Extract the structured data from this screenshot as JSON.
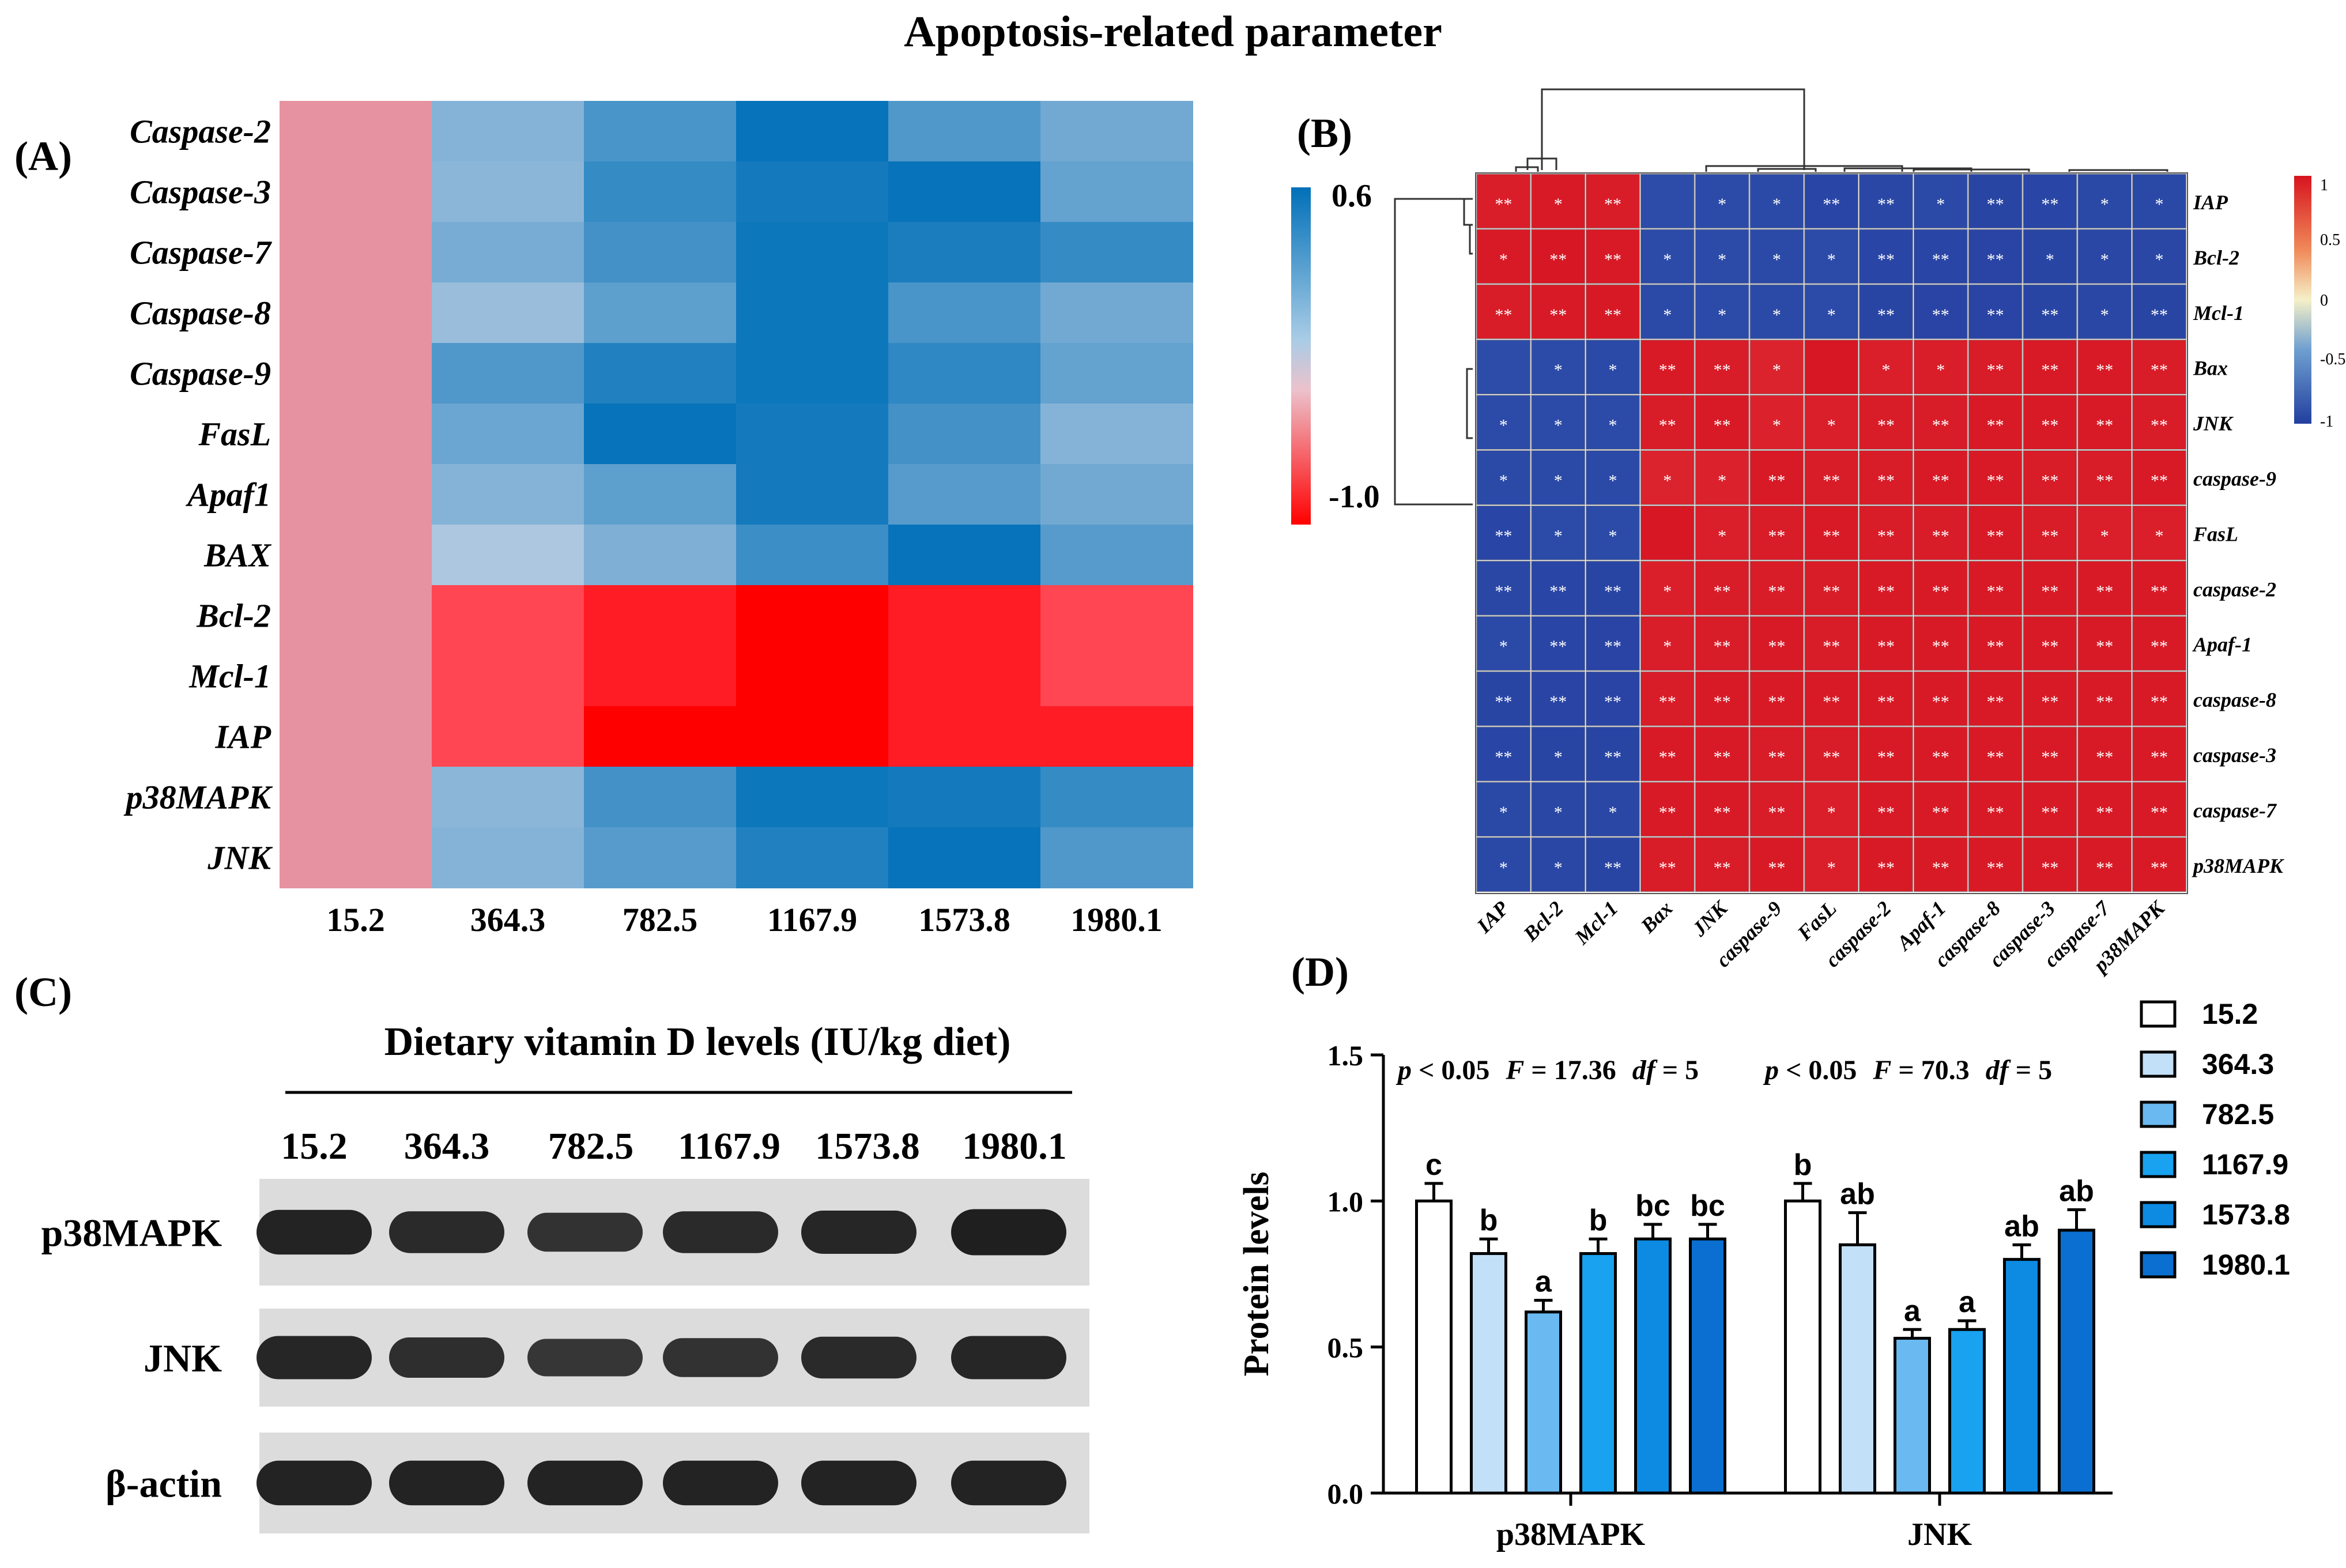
{
  "figure_title": "Apoptosis-related parameter",
  "panel_labels": [
    "(A)",
    "(B)",
    "(C)",
    "(D)"
  ],
  "chart_data": [
    {
      "id": "A",
      "type": "heatmap",
      "title": "",
      "rows": [
        "Caspase-2",
        "Caspase-3",
        "Caspase-7",
        "Caspase-8",
        "Caspase-9",
        "FasL",
        "Apaf1",
        "BAX",
        "Bcl-2",
        "Mcl-1",
        "IAP",
        "p38MAPK",
        "JNK"
      ],
      "columns": [
        "15.2",
        "364.3",
        "782.5",
        "1167.9",
        "1573.8",
        "1980.1"
      ],
      "values": [
        [
          -0.8,
          0.2,
          0.38,
          0.58,
          0.36,
          0.26
        ],
        [
          -0.8,
          0.18,
          0.44,
          0.54,
          0.58,
          0.3
        ],
        [
          -0.8,
          0.24,
          0.4,
          0.56,
          0.52,
          0.44
        ],
        [
          -0.8,
          0.14,
          0.32,
          0.56,
          0.38,
          0.26
        ],
        [
          -0.8,
          0.36,
          0.5,
          0.56,
          0.46,
          0.3
        ],
        [
          -0.8,
          0.28,
          0.58,
          0.54,
          0.4,
          0.2
        ],
        [
          -0.8,
          0.2,
          0.32,
          0.54,
          0.34,
          0.26
        ],
        [
          -0.8,
          0.08,
          0.22,
          0.42,
          0.58,
          0.34
        ],
        [
          -0.8,
          -0.84,
          -0.93,
          -1.0,
          -0.92,
          -0.86
        ],
        [
          -0.8,
          -0.86,
          -0.92,
          -1.0,
          -0.92,
          -0.86
        ],
        [
          -0.8,
          -0.86,
          -1.0,
          -1.0,
          -0.94,
          -0.9
        ],
        [
          -0.8,
          0.18,
          0.4,
          0.56,
          0.54,
          0.44
        ],
        [
          -0.8,
          0.2,
          0.34,
          0.5,
          0.58,
          0.36
        ]
      ],
      "colorbar": {
        "max_label": "0.6",
        "min_label": "-1.0",
        "max": 0.6,
        "min": -1.0
      }
    },
    {
      "id": "B",
      "type": "heatmap",
      "title": "",
      "labels": [
        "IAP",
        "Bcl-2",
        "Mcl-1",
        "Bax",
        "JNK",
        "caspase-9",
        "FasL",
        "caspase-2",
        "Apaf-1",
        "caspase-8",
        "caspase-3",
        "caspase-7",
        "p38MAPK"
      ],
      "values": [
        [
          0.82,
          0.86,
          0.84,
          -0.7,
          -0.74,
          -0.76,
          -0.85,
          -0.82,
          -0.78,
          -0.86,
          -0.85,
          -0.8,
          -0.8
        ],
        [
          0.86,
          0.9,
          0.86,
          -0.72,
          -0.74,
          -0.76,
          -0.72,
          -0.85,
          -0.85,
          -0.88,
          -0.86,
          -0.82,
          -0.82
        ],
        [
          0.84,
          0.86,
          0.88,
          -0.76,
          -0.74,
          -0.76,
          -0.72,
          -0.86,
          -0.88,
          -0.88,
          -0.86,
          -0.82,
          -0.86
        ],
        [
          -0.7,
          -0.72,
          -0.76,
          0.86,
          0.84,
          0.74,
          0.9,
          0.8,
          0.82,
          0.84,
          0.86,
          0.86,
          0.84
        ],
        [
          -0.74,
          -0.74,
          -0.74,
          0.84,
          0.86,
          0.76,
          0.8,
          0.84,
          0.84,
          0.86,
          0.86,
          0.86,
          0.84
        ],
        [
          -0.76,
          -0.76,
          -0.76,
          0.74,
          0.76,
          0.86,
          0.84,
          0.84,
          0.86,
          0.86,
          0.84,
          0.84,
          0.86
        ],
        [
          -0.85,
          -0.72,
          -0.72,
          0.9,
          0.8,
          0.84,
          0.86,
          0.84,
          0.84,
          0.86,
          0.84,
          0.8,
          0.8
        ],
        [
          -0.82,
          -0.85,
          -0.86,
          0.8,
          0.84,
          0.84,
          0.84,
          0.86,
          0.86,
          0.86,
          0.86,
          0.86,
          0.86
        ],
        [
          -0.78,
          -0.85,
          -0.88,
          0.82,
          0.84,
          0.86,
          0.84,
          0.86,
          0.86,
          0.86,
          0.86,
          0.86,
          0.86
        ],
        [
          -0.86,
          -0.88,
          -0.88,
          0.84,
          0.86,
          0.86,
          0.86,
          0.86,
          0.86,
          0.86,
          0.86,
          0.86,
          0.86
        ],
        [
          -0.85,
          -0.86,
          -0.86,
          0.86,
          0.86,
          0.84,
          0.84,
          0.86,
          0.86,
          0.86,
          0.86,
          0.86,
          0.86
        ],
        [
          -0.8,
          -0.82,
          -0.82,
          0.86,
          0.86,
          0.84,
          0.8,
          0.86,
          0.86,
          0.86,
          0.86,
          0.86,
          0.86
        ],
        [
          -0.8,
          -0.82,
          -0.86,
          0.84,
          0.84,
          0.86,
          0.8,
          0.86,
          0.86,
          0.86,
          0.86,
          0.86,
          0.86
        ]
      ],
      "significance": [
        [
          "**",
          "*",
          "**",
          "",
          "*",
          "*",
          "**",
          "**",
          "*",
          "**",
          "**",
          "*",
          "*"
        ],
        [
          "*",
          "**",
          "**",
          "*",
          "*",
          "*",
          "*",
          "**",
          "**",
          "**",
          "*",
          "*",
          "*"
        ],
        [
          "**",
          "**",
          "**",
          "*",
          "*",
          "*",
          "*",
          "**",
          "**",
          "**",
          "**",
          "*",
          "**"
        ],
        [
          "",
          "*",
          "*",
          "**",
          "**",
          "*",
          "",
          "*",
          "*",
          "**",
          "**",
          "**",
          "**"
        ],
        [
          "*",
          "*",
          "*",
          "**",
          "**",
          "*",
          "*",
          "**",
          "**",
          "**",
          "**",
          "**",
          "**"
        ],
        [
          "*",
          "*",
          "*",
          "*",
          "*",
          "**",
          "**",
          "**",
          "**",
          "**",
          "**",
          "**",
          "**"
        ],
        [
          "**",
          "*",
          "*",
          "",
          "*",
          "**",
          "**",
          "**",
          "**",
          "**",
          "**",
          "*",
          "*"
        ],
        [
          "**",
          "**",
          "**",
          "*",
          "**",
          "**",
          "**",
          "**",
          "**",
          "**",
          "**",
          "**",
          "**"
        ],
        [
          "*",
          "**",
          "**",
          "*",
          "**",
          "**",
          "**",
          "**",
          "**",
          "**",
          "**",
          "**",
          "**"
        ],
        [
          "**",
          "**",
          "**",
          "**",
          "**",
          "**",
          "**",
          "**",
          "**",
          "**",
          "**",
          "**",
          "**"
        ],
        [
          "**",
          "*",
          "**",
          "**",
          "**",
          "**",
          "**",
          "**",
          "**",
          "**",
          "**",
          "**",
          "**"
        ],
        [
          "*",
          "*",
          "*",
          "**",
          "**",
          "**",
          "*",
          "**",
          "**",
          "**",
          "**",
          "**",
          "**"
        ],
        [
          "*",
          "*",
          "**",
          "**",
          "**",
          "**",
          "*",
          "**",
          "**",
          "**",
          "**",
          "**",
          "**"
        ]
      ],
      "colorbar": {
        "ticks": [
          "1",
          "0.5",
          "0",
          "-0.5",
          "-1"
        ],
        "max": 1,
        "min": -1
      }
    },
    {
      "id": "D",
      "type": "bar",
      "title": "",
      "categories": [
        "p38MAPK",
        "JNK"
      ],
      "ylabel": "Protein levels",
      "xlabel": "",
      "ylim": [
        0,
        1.5
      ],
      "yticks": [
        "0.0",
        "0.5",
        "1.0",
        "1.5"
      ],
      "legend_position": "top-right",
      "series": [
        {
          "name": "15.2",
          "values": [
            1.0,
            1.0
          ],
          "errors": [
            0.06,
            0.06
          ],
          "letters": [
            "c",
            "b"
          ],
          "color": "#ffffff"
        },
        {
          "name": "364.3",
          "values": [
            0.82,
            0.85
          ],
          "errors": [
            0.05,
            0.11
          ],
          "letters": [
            "b",
            "ab"
          ],
          "color": "#c2e0f7"
        },
        {
          "name": "782.5",
          "values": [
            0.62,
            0.53
          ],
          "errors": [
            0.04,
            0.03
          ],
          "letters": [
            "a",
            "a"
          ],
          "color": "#6ab9f0"
        },
        {
          "name": "1167.9",
          "values": [
            0.82,
            0.56
          ],
          "errors": [
            0.05,
            0.03
          ],
          "letters": [
            "b",
            "a"
          ],
          "color": "#18a2f0"
        },
        {
          "name": "1573.8",
          "values": [
            0.87,
            0.8
          ],
          "errors": [
            0.05,
            0.05
          ],
          "letters": [
            "bc",
            "ab"
          ],
          "color": "#0d8be3"
        },
        {
          "name": "1980.1",
          "values": [
            0.87,
            0.9
          ],
          "errors": [
            0.05,
            0.07
          ],
          "letters": [
            "bc",
            "ab"
          ],
          "color": "#0a6fd0"
        }
      ],
      "stats": [
        {
          "p": "p",
          "p_rest": " < 0.05",
          "F": "F",
          "F_rest": " = 17.36",
          "df": "df",
          "df_rest": " = 5"
        },
        {
          "p": "p",
          "p_rest": " < 0.05",
          "F": "F",
          "F_rest": " = 70.3",
          "df": "df",
          "df_rest": " = 5"
        }
      ]
    }
  ],
  "panel_c": {
    "header": "Dietary vitamin D levels (IU/kg diet)",
    "lanes": [
      "15.2",
      "364.3",
      "782.5",
      "1167.9",
      "1573.8",
      "1980.1"
    ],
    "blots": [
      {
        "label": "p38MAPK",
        "intensities": [
          0.95,
          0.85,
          0.75,
          0.85,
          0.9,
          1.0
        ]
      },
      {
        "label": "JNK",
        "intensities": [
          0.9,
          0.8,
          0.7,
          0.75,
          0.85,
          0.9
        ]
      },
      {
        "label": "β-actin",
        "intensities": [
          0.95,
          0.95,
          0.95,
          0.95,
          0.95,
          0.95
        ]
      }
    ]
  },
  "colors": {
    "heat_blue": "#0070b8",
    "heat_red": "#ff0000",
    "heat_light": "#c9dded",
    "corr_red": "#d7141e",
    "corr_blue": "#2a4aa8"
  }
}
